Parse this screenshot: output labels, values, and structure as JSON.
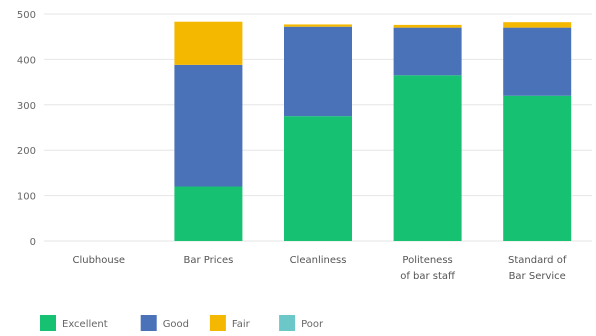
{
  "chart_data": {
    "type": "bar",
    "stacked": true,
    "categories": [
      [
        "Clubhouse"
      ],
      [
        "Bar Prices"
      ],
      [
        "Cleanliness"
      ],
      [
        "Politeness",
        "of bar staff"
      ],
      [
        "Standard of",
        "Bar Service"
      ]
    ],
    "series": [
      {
        "name": "Excellent",
        "color": "#16c172",
        "values": [
          0,
          120,
          275,
          365,
          320
        ]
      },
      {
        "name": "Good",
        "color": "#4a72b8",
        "values": [
          0,
          268,
          197,
          105,
          150
        ]
      },
      {
        "name": "Fair",
        "color": "#f5b800",
        "values": [
          0,
          95,
          5,
          6,
          12
        ]
      },
      {
        "name": "Poor",
        "color": "#6cc7c9",
        "values": [
          0,
          0,
          0,
          0,
          0
        ]
      }
    ],
    "ylim": [
      0,
      500
    ],
    "yticks": [
      0,
      100,
      200,
      300,
      400,
      500
    ],
    "grid": "horizontal",
    "legend_position": "bottom-left",
    "title": "",
    "xlabel": "",
    "ylabel": ""
  }
}
